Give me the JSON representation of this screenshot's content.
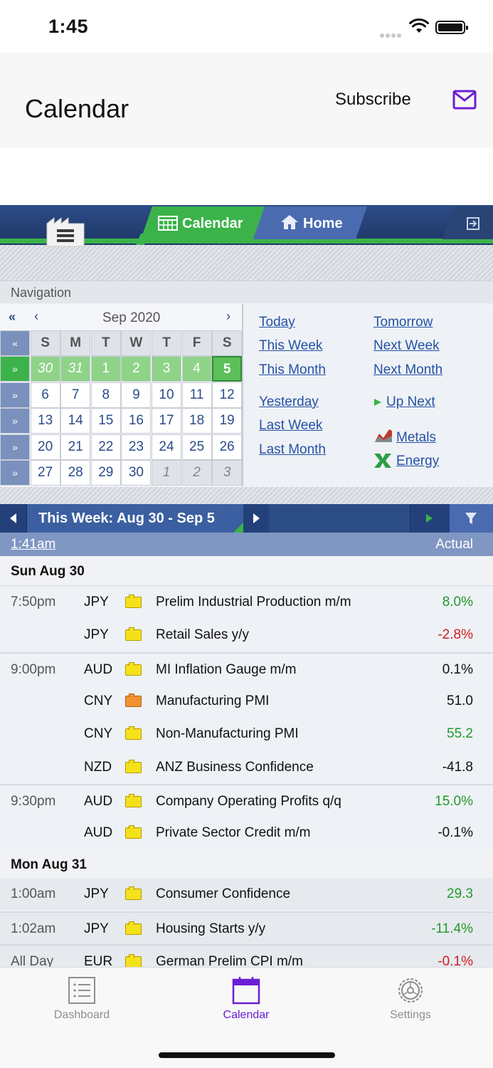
{
  "status": {
    "time": "1:45"
  },
  "header": {
    "title": "Calendar",
    "subscribe_label": "Subscribe"
  },
  "web": {
    "tabs": {
      "calendar": "Calendar",
      "home": "Home"
    },
    "navigation_label": "Navigation",
    "mini_calendar": {
      "month_label": "Sep 2020",
      "first_nav": "«",
      "prev_nav": "‹",
      "next_nav": "›",
      "weekdays": [
        "S",
        "M",
        "T",
        "W",
        "T",
        "F",
        "S"
      ],
      "weeks": [
        [
          "30",
          "31",
          "1",
          "2",
          "3",
          "4",
          "5"
        ],
        [
          "6",
          "7",
          "8",
          "9",
          "10",
          "11",
          "12"
        ],
        [
          "13",
          "14",
          "15",
          "16",
          "17",
          "18",
          "19"
        ],
        [
          "20",
          "21",
          "22",
          "23",
          "24",
          "25",
          "26"
        ],
        [
          "27",
          "28",
          "29",
          "30",
          "1",
          "2",
          "3"
        ]
      ],
      "week_arrow": "»",
      "header_arrow": "«"
    },
    "links": {
      "today": "Today",
      "tomorrow": "Tomorrow",
      "this_week": "This Week",
      "next_week": "Next Week",
      "this_month": "This Month",
      "next_month": "Next Month",
      "yesterday": "Yesterday",
      "up_next": "Up Next",
      "last_week": "Last Week",
      "metals": "Metals",
      "last_month": "Last Month",
      "energy": "Energy"
    },
    "week_bar": {
      "title": "This Week: Aug 30 - Sep 5"
    },
    "time_bar": {
      "time": "1:41am",
      "actual_label": "Actual"
    },
    "days": [
      {
        "label": "Sun Aug 30",
        "events": [
          {
            "time": "7:50pm",
            "currency": "JPY",
            "impact": "yellow",
            "name": "Prelim Industrial Production m/m",
            "actual": "8.0%",
            "tone": "pos"
          },
          {
            "time": "",
            "currency": "JPY",
            "impact": "yellow",
            "name": "Retail Sales y/y",
            "actual": "-2.8%",
            "tone": "neg"
          },
          {
            "time": "9:00pm",
            "currency": "AUD",
            "impact": "yellow",
            "name": "MI Inflation Gauge m/m",
            "actual": "0.1%",
            "tone": "neu"
          },
          {
            "time": "",
            "currency": "CNY",
            "impact": "orange",
            "name": "Manufacturing PMI",
            "actual": "51.0",
            "tone": "neu"
          },
          {
            "time": "",
            "currency": "CNY",
            "impact": "yellow",
            "name": "Non-Manufacturing PMI",
            "actual": "55.2",
            "tone": "pos"
          },
          {
            "time": "",
            "currency": "NZD",
            "impact": "yellow",
            "name": "ANZ Business Confidence",
            "actual": "-41.8",
            "tone": "neu"
          },
          {
            "time": "9:30pm",
            "currency": "AUD",
            "impact": "yellow",
            "name": "Company Operating Profits q/q",
            "actual": "15.0%",
            "tone": "pos"
          },
          {
            "time": "",
            "currency": "AUD",
            "impact": "yellow",
            "name": "Private Sector Credit m/m",
            "actual": "-0.1%",
            "tone": "neu"
          }
        ]
      },
      {
        "label": "Mon Aug 31",
        "events": [
          {
            "time": "1:00am",
            "currency": "JPY",
            "impact": "yellow",
            "name": "Consumer Confidence",
            "actual": "29.3",
            "tone": "pos"
          },
          {
            "time": "1:02am",
            "currency": "JPY",
            "impact": "yellow",
            "name": "Housing Starts y/y",
            "actual": "-11.4%",
            "tone": "pos"
          },
          {
            "time": "All Day",
            "currency": "EUR",
            "impact": "yellow",
            "name": "German Prelim CPI m/m",
            "actual": "-0.1%",
            "tone": "neg"
          }
        ]
      }
    ]
  },
  "tabbar": {
    "dashboard": "Dashboard",
    "calendar": "Calendar",
    "settings": "Settings"
  },
  "colors": {
    "accent": "#6b1fd6",
    "site_green": "#3bb34a",
    "site_blue": "#2c4c86",
    "positive": "#229a2c",
    "negative": "#cc1f1f"
  }
}
